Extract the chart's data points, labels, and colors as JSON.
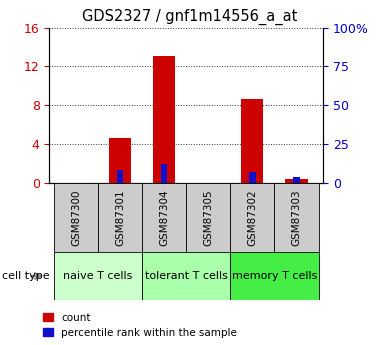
{
  "title": "GDS2327 / gnf1m14556_a_at",
  "samples": [
    "GSM87300",
    "GSM87301",
    "GSM87304",
    "GSM87305",
    "GSM87302",
    "GSM87303"
  ],
  "count_values": [
    0.0,
    4.6,
    13.1,
    0.0,
    8.6,
    0.35
  ],
  "percentile_values": [
    0.0,
    8.0,
    12.0,
    0.0,
    7.0,
    4.0
  ],
  "left_ylim": [
    0,
    16
  ],
  "left_yticks": [
    0,
    4,
    8,
    12,
    16
  ],
  "right_yticks": [
    0,
    25,
    50,
    75,
    100
  ],
  "right_ylim": [
    0,
    100
  ],
  "bar_color_red": "#cc0000",
  "bar_color_blue": "#1111cc",
  "bar_width": 0.5,
  "groups": [
    {
      "label": "naive T cells",
      "indices": [
        0,
        1
      ],
      "color": "#ccffcc"
    },
    {
      "label": "tolerant T cells",
      "indices": [
        2,
        3
      ],
      "color": "#aaffaa"
    },
    {
      "label": "memory T cells",
      "indices": [
        4,
        5
      ],
      "color": "#55ee55"
    }
  ],
  "cell_type_label": "cell type",
  "legend_count": "count",
  "legend_percentile": "percentile rank within the sample",
  "title_fontsize": 10.5,
  "tick_label_fontsize": 8,
  "axis_tick_color_left": "#cc0000",
  "axis_tick_color_right": "#0000cc",
  "dotted_grid_color": "#333333",
  "group_label_fontsize": 8,
  "sample_label_fontsize": 7.5,
  "bg_sample": "#cccccc",
  "bg_group_1": "#ccffcc",
  "bg_group_2": "#aaffaa",
  "bg_group_3": "#44ee44"
}
